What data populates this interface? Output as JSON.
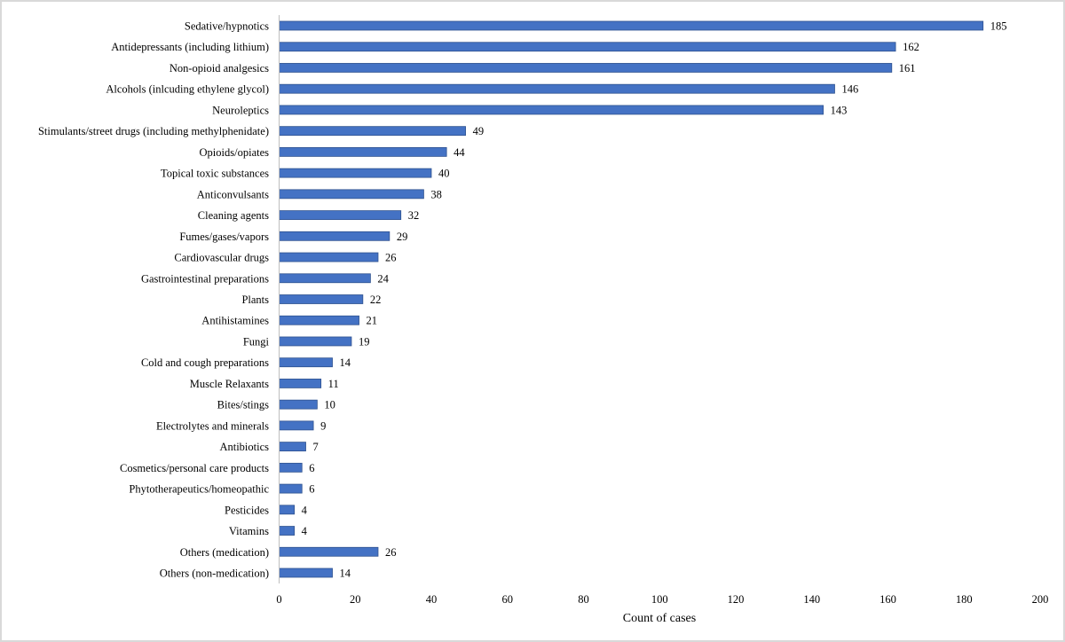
{
  "chart_data": {
    "type": "bar",
    "orientation": "horizontal",
    "categories": [
      "Sedative/hypnotics",
      "Antidepressants (including lithium)",
      "Non-opioid analgesics",
      "Alcohols (inlcuding ethylene glycol)",
      "Neuroleptics",
      "Stimulants/street drugs (including methylphenidate)",
      "Opioids/opiates",
      "Topical toxic substances",
      "Anticonvulsants",
      "Cleaning agents",
      "Fumes/gases/vapors",
      "Cardiovascular drugs",
      "Gastrointestinal preparations",
      "Plants",
      "Antihistamines",
      "Fungi",
      "Cold and cough preparations",
      "Muscle Relaxants",
      "Bites/stings",
      "Electrolytes and minerals",
      "Antibiotics",
      "Cosmetics/personal care products",
      "Phytotherapeutics/homeopathic",
      "Pesticides",
      "Vitamins",
      "Others (medication)",
      "Others (non-medication)"
    ],
    "values": [
      185,
      162,
      161,
      146,
      143,
      49,
      44,
      40,
      38,
      32,
      29,
      26,
      24,
      22,
      21,
      19,
      14,
      11,
      10,
      9,
      7,
      6,
      6,
      4,
      4,
      26,
      14
    ],
    "title": "",
    "xlabel": "Count of cases",
    "ylabel": "",
    "xlim": [
      0,
      200
    ],
    "xticks": [
      "0",
      "20",
      "40",
      "60",
      "80",
      "100",
      "120",
      "140",
      "160",
      "180",
      "200"
    ],
    "grid": false,
    "legend": "none",
    "bar_color": "#4472C4"
  }
}
